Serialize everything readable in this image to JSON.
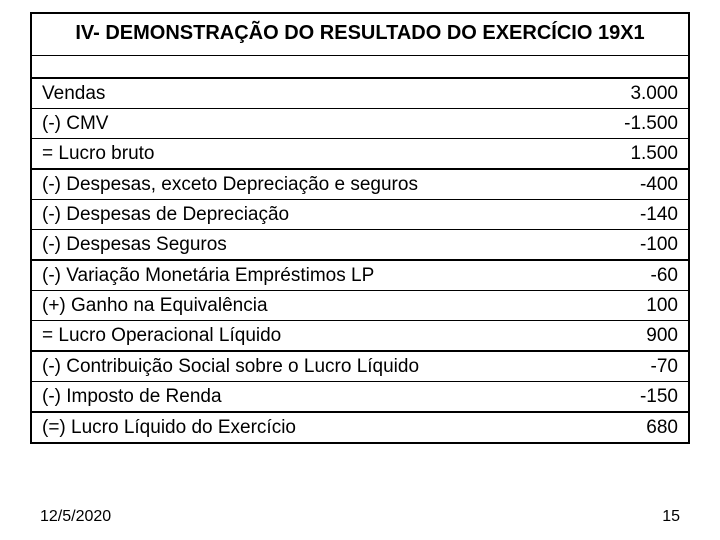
{
  "title": "IV- DEMONSTRAÇÃO DO RESULTADO DO EXERCÍCIO 19X1",
  "rows": [
    {
      "label": "Vendas",
      "value": "3.000"
    },
    {
      "label": "(-) CMV",
      "value": "-1.500"
    },
    {
      "label": "= Lucro bruto",
      "value": "1.500"
    },
    {
      "label": "(-) Despesas, exceto Depreciação e seguros",
      "value": "-400"
    },
    {
      "label": "(-) Despesas de Depreciação",
      "value": "-140"
    },
    {
      "label": "(-) Despesas Seguros",
      "value": "-100"
    },
    {
      "label": "(-)  Variação Monetária Empréstimos LP",
      "value": "-60"
    },
    {
      "label": "(+) Ganho na Equivalência",
      "value": "100"
    },
    {
      "label": "= Lucro Operacional Líquido",
      "value": "900"
    },
    {
      "label": "(-) Contribuição Social sobre o Lucro Líquido",
      "value": "-70"
    },
    {
      "label": "(-) Imposto de Renda",
      "value": "-150"
    },
    {
      "label": "(=) Lucro Líquido do Exercício",
      "value": "680"
    }
  ],
  "footer": {
    "date": "12/5/2020",
    "page": "15"
  },
  "style": {
    "font_family": "Arial",
    "title_fontsize": 20,
    "row_fontsize": 19,
    "footer_fontsize": 16,
    "outer_border_width": 2.5,
    "outer_border_color": "#000000",
    "row_border_color": "#000000",
    "background_color": "#ffffff",
    "section_break_after_indices": [
      2,
      5,
      8,
      10
    ]
  }
}
